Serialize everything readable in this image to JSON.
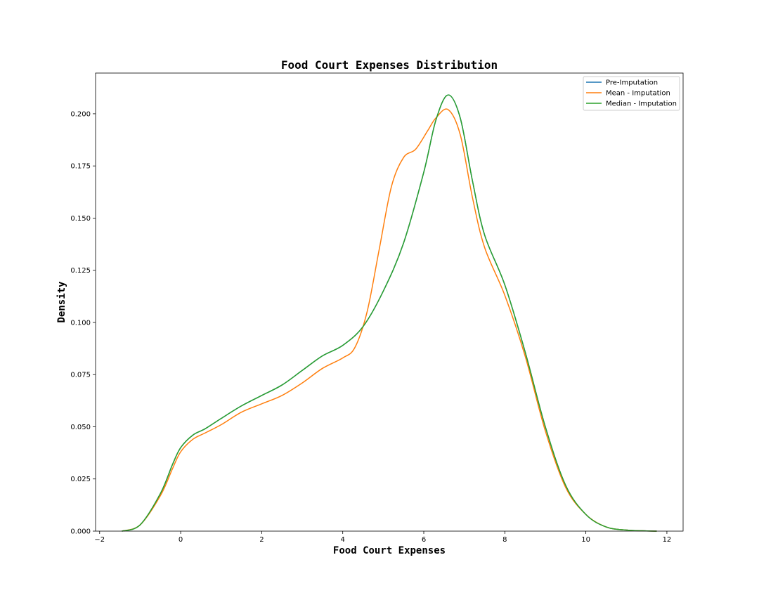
{
  "chart_data": {
    "type": "line",
    "title": "Food Court Expenses Distribution",
    "xlabel": "Food Court Expenses",
    "ylabel": "Density",
    "xlim": [
      -2.1,
      12.4
    ],
    "ylim": [
      0.0,
      0.2195
    ],
    "xticks": [
      -2,
      0,
      2,
      4,
      6,
      8,
      10,
      12
    ],
    "yticks": [
      0.0,
      0.025,
      0.05,
      0.075,
      0.1,
      0.125,
      0.15,
      0.175,
      0.2
    ],
    "grid": false,
    "legend_position": "top-right",
    "series": [
      {
        "name": "Pre-Imputation",
        "color": "#1f77b4",
        "x": [
          -1.45,
          -1.0,
          -0.5,
          -0.2,
          0.0,
          0.3,
          0.6,
          1.0,
          1.5,
          2.0,
          2.5,
          3.0,
          3.5,
          4.0,
          4.5,
          5.0,
          5.5,
          6.0,
          6.3,
          6.6,
          6.9,
          7.2,
          7.5,
          8.0,
          8.5,
          9.0,
          9.5,
          10.0,
          10.5,
          11.0,
          11.5,
          11.75
        ],
        "y": [
          0.0,
          0.003,
          0.018,
          0.032,
          0.04,
          0.046,
          0.049,
          0.054,
          0.06,
          0.065,
          0.07,
          0.077,
          0.084,
          0.089,
          0.098,
          0.115,
          0.138,
          0.172,
          0.197,
          0.209,
          0.198,
          0.168,
          0.142,
          0.118,
          0.086,
          0.05,
          0.022,
          0.008,
          0.002,
          0.0005,
          0.0001,
          0.0
        ]
      },
      {
        "name": "Mean - Imputation",
        "color": "#ff7f0e",
        "x": [
          -1.45,
          -1.0,
          -0.5,
          -0.2,
          0.0,
          0.3,
          0.6,
          1.0,
          1.5,
          2.0,
          2.5,
          3.0,
          3.5,
          4.0,
          4.3,
          4.6,
          4.9,
          5.2,
          5.5,
          5.8,
          6.1,
          6.3,
          6.6,
          6.9,
          7.2,
          7.5,
          8.0,
          8.5,
          9.0,
          9.5,
          10.0,
          10.5,
          11.0,
          11.5,
          11.75
        ],
        "y": [
          0.0,
          0.003,
          0.017,
          0.03,
          0.038,
          0.044,
          0.047,
          0.051,
          0.057,
          0.061,
          0.065,
          0.071,
          0.078,
          0.083,
          0.088,
          0.105,
          0.135,
          0.165,
          0.179,
          0.183,
          0.192,
          0.198,
          0.202,
          0.19,
          0.16,
          0.136,
          0.113,
          0.084,
          0.048,
          0.021,
          0.008,
          0.002,
          0.0005,
          0.0001,
          0.0
        ]
      },
      {
        "name": "Median - Imputation",
        "color": "#2ca02c",
        "x": [
          -1.45,
          -1.0,
          -0.5,
          -0.2,
          0.0,
          0.3,
          0.6,
          1.0,
          1.5,
          2.0,
          2.5,
          3.0,
          3.5,
          4.0,
          4.5,
          5.0,
          5.5,
          6.0,
          6.3,
          6.6,
          6.9,
          7.2,
          7.5,
          8.0,
          8.5,
          9.0,
          9.5,
          10.0,
          10.5,
          11.0,
          11.5,
          11.75
        ],
        "y": [
          0.0,
          0.003,
          0.018,
          0.032,
          0.04,
          0.046,
          0.049,
          0.054,
          0.06,
          0.065,
          0.07,
          0.077,
          0.084,
          0.089,
          0.098,
          0.115,
          0.138,
          0.172,
          0.197,
          0.209,
          0.198,
          0.168,
          0.142,
          0.118,
          0.086,
          0.05,
          0.022,
          0.008,
          0.002,
          0.0005,
          0.0001,
          0.0
        ]
      }
    ]
  }
}
